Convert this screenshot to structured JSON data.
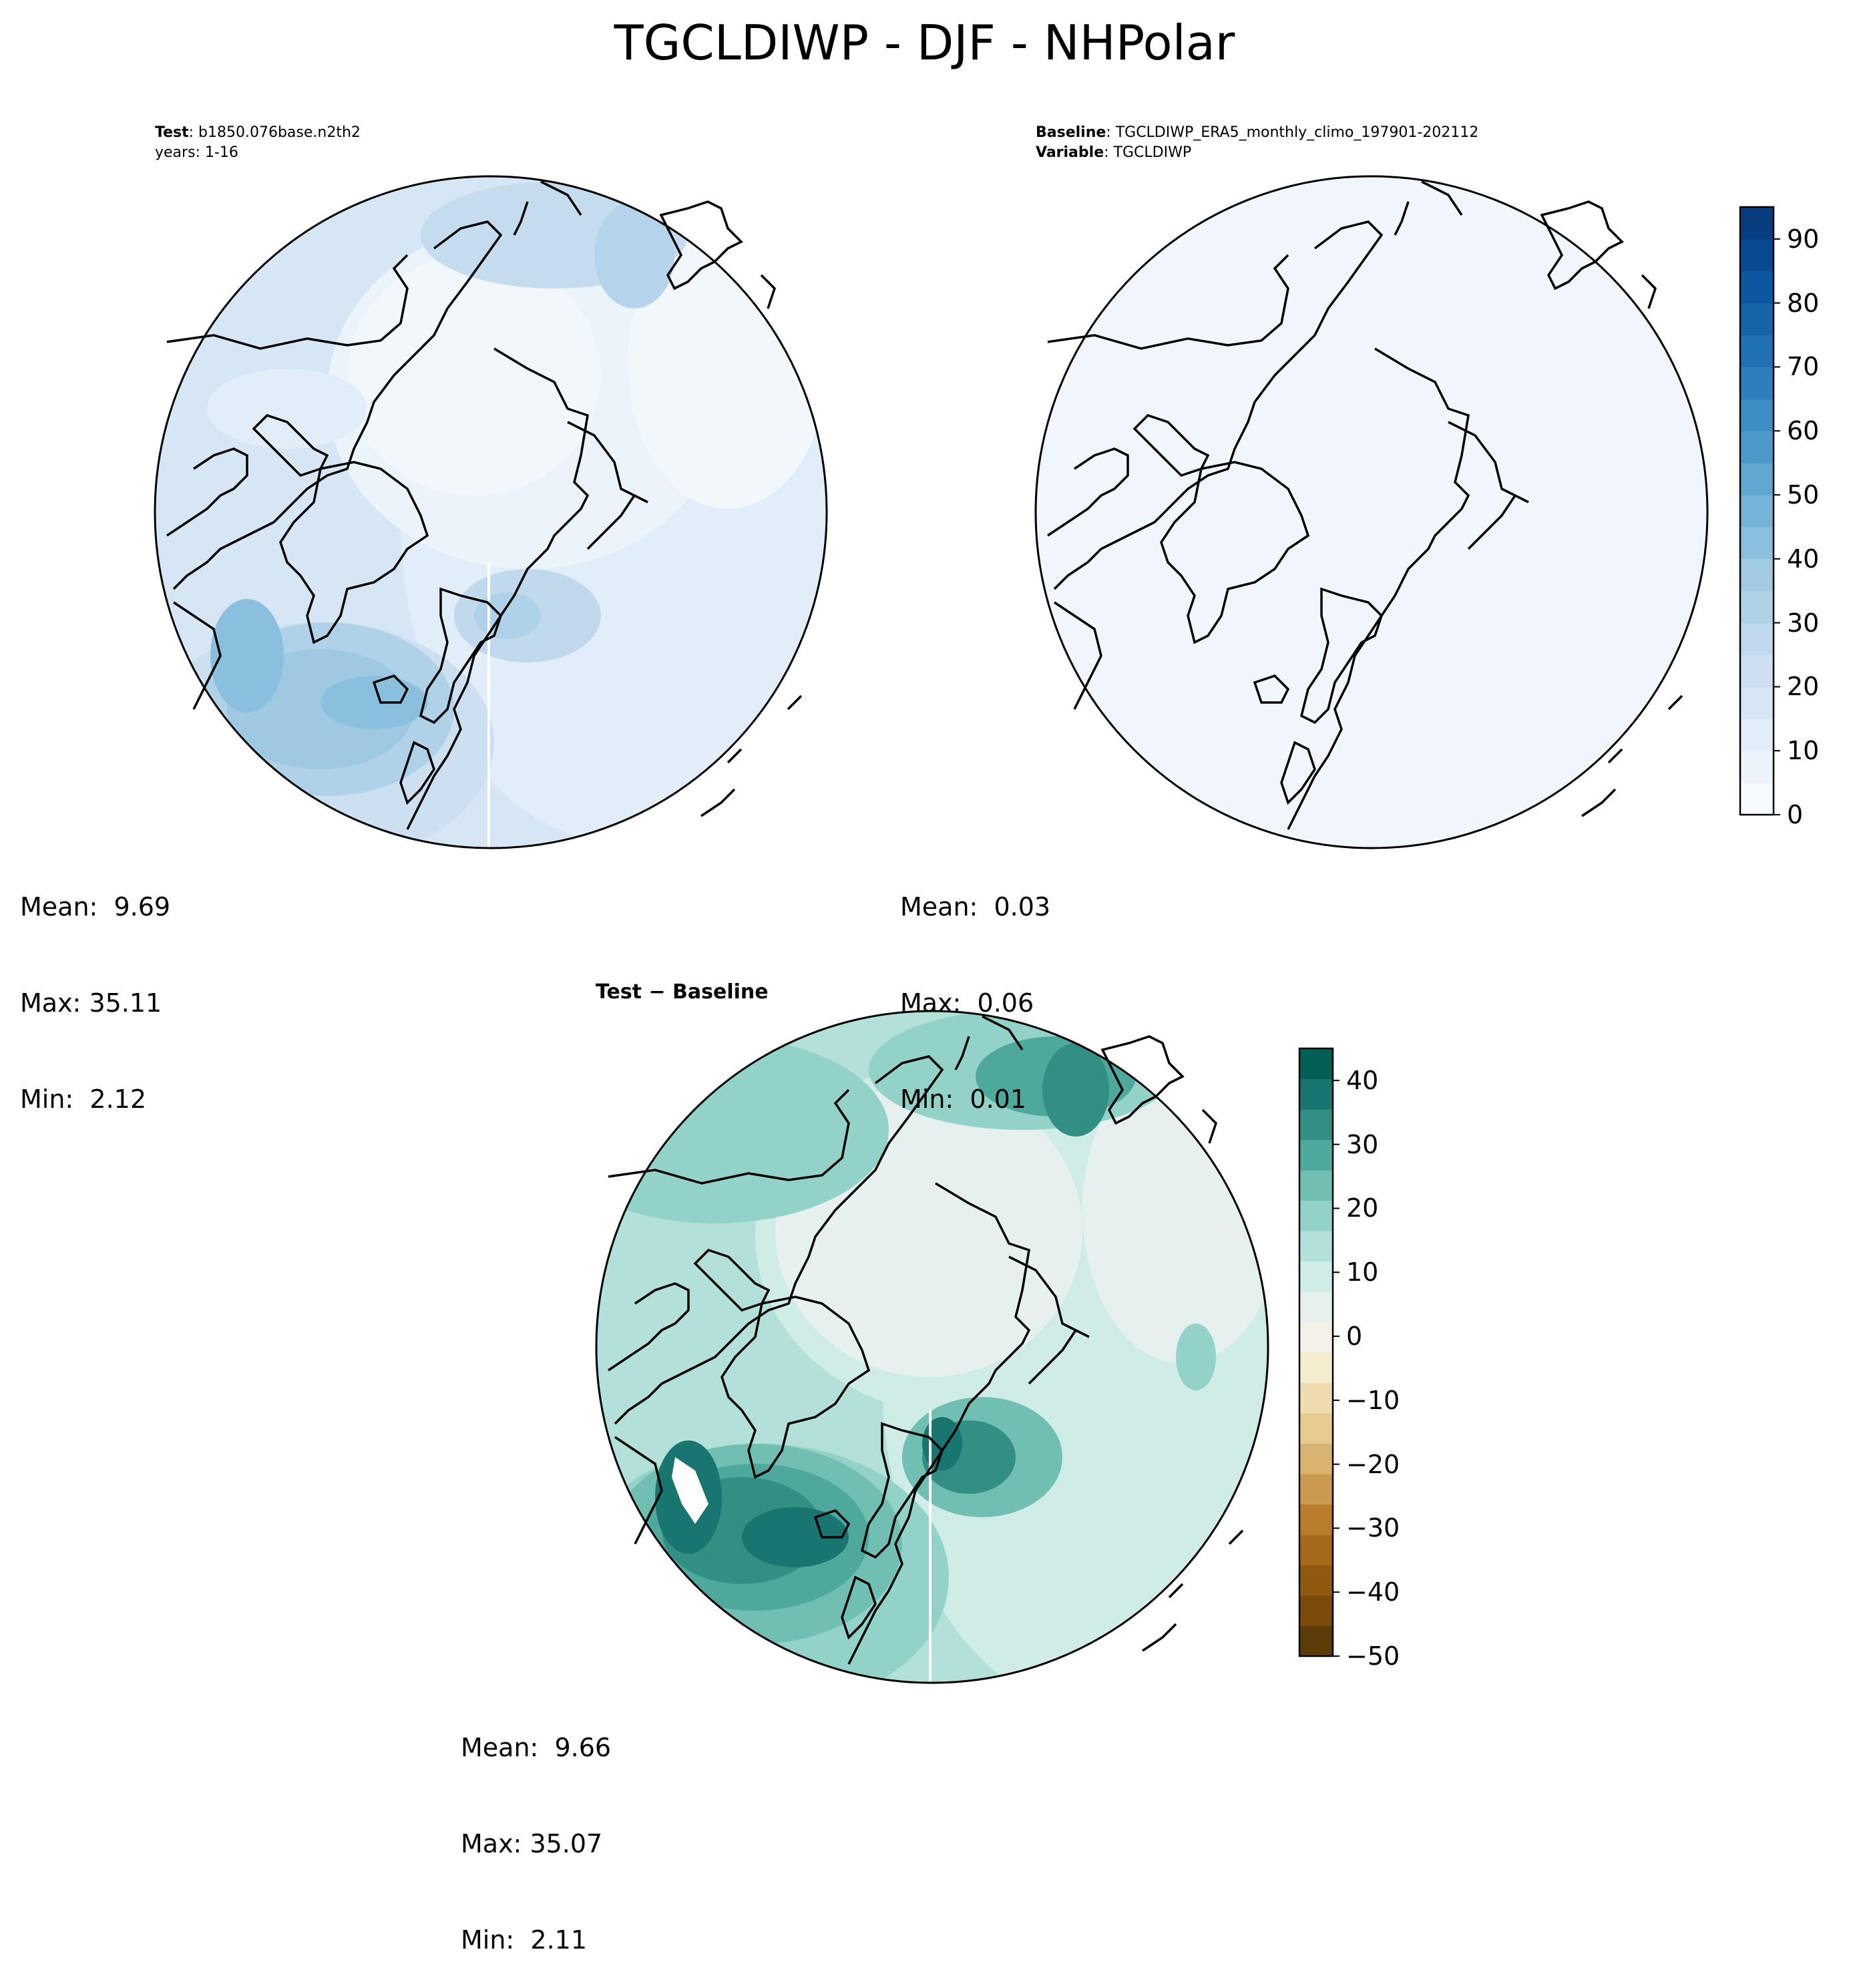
{
  "title": "TGCLDIWP - DJF - NHPolar",
  "panels": {
    "test": {
      "label_bold": "Test",
      "label_text": ": b1850.076base.n2th2",
      "line2": "years: 1-16",
      "mean": "Mean:  9.69",
      "max": "Max: 35.11",
      "min": "Min:  2.12"
    },
    "baseline": {
      "label_bold": "Baseline",
      "label_text": ": TGCLDIWP_ERA5_monthly_climo_197901-202112",
      "line2_bold": "Variable",
      "line2_text": ": TGCLDIWP",
      "mean": "Mean:  0.03",
      "max": "Max:  0.06",
      "min": "Min:  0.01"
    },
    "diff": {
      "title": "Test − Baseline",
      "mean": "Mean:  9.66",
      "max": "Max: 35.07",
      "min": "Min:  2.11"
    }
  },
  "colorbars": {
    "main": {
      "cmap": "Blues",
      "range": [
        0,
        95
      ],
      "step": 5,
      "colors": [
        "#f7fbff",
        "#ebf3fb",
        "#e1edf8",
        "#d6e6f4",
        "#cde0f1",
        "#c1d9ed",
        "#b0d2e8",
        "#a0cbe2",
        "#8abfdd",
        "#75b4d8",
        "#5fa6d1",
        "#4d99ca",
        "#3d8dc4",
        "#2e7ebc",
        "#2171b5",
        "#1764ab",
        "#0d57a1",
        "#084a91",
        "#083d7f"
      ],
      "tick_labels": [
        "0",
        "10",
        "20",
        "30",
        "40",
        "50",
        "60",
        "70",
        "80",
        "90"
      ],
      "tick_values": [
        0,
        10,
        20,
        30,
        40,
        50,
        60,
        70,
        80,
        90
      ]
    },
    "diff": {
      "cmap": "BrBG",
      "range": [
        -50,
        45
      ],
      "step": 5,
      "colors": [
        "#5e3c08",
        "#7a4b0b",
        "#8f5a0f",
        "#a66a1a",
        "#b97c2b",
        "#c99a4f",
        "#d8b470",
        "#e6ca90",
        "#efdcae",
        "#f5ebcf",
        "#f3f0e8",
        "#e6f1ef",
        "#d0ece7",
        "#b3e1d9",
        "#93d2c8",
        "#70bfb2",
        "#4fa89c",
        "#338e84",
        "#197570",
        "#035f54"
      ],
      "tick_labels": [
        "40",
        "30",
        "20",
        "10",
        "0",
        "−10",
        "−20",
        "−30",
        "−40",
        "−50"
      ],
      "tick_values": [
        40,
        30,
        20,
        10,
        0,
        -10,
        -20,
        -30,
        -40,
        -50
      ]
    }
  }
}
